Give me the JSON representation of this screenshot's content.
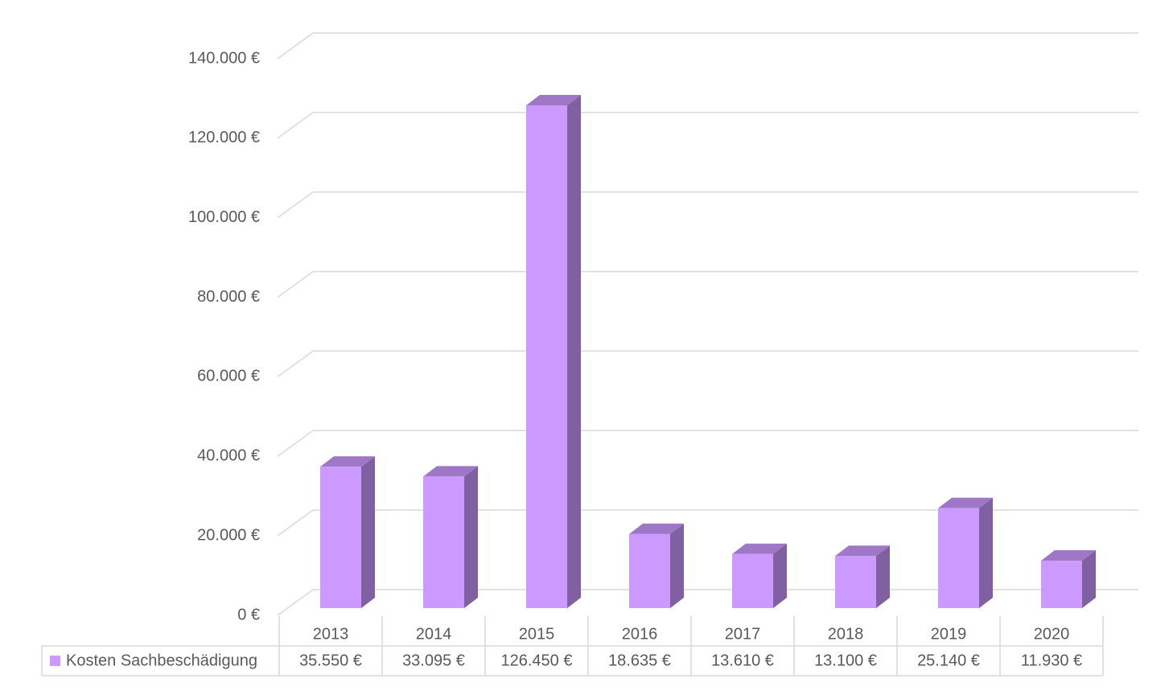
{
  "chart_data": {
    "type": "bar3d",
    "categories": [
      "2013",
      "2014",
      "2015",
      "2016",
      "2017",
      "2018",
      "2019",
      "2020"
    ],
    "series": [
      {
        "name": "Kosten Sachbeschädigung",
        "color": "#cc99ff",
        "values": [
          35550,
          33095,
          126450,
          18635,
          13610,
          13100,
          25140,
          11930
        ],
        "value_labels": [
          "35.550 €",
          "33.095 €",
          "126.450 €",
          "18.635 €",
          "13.610 €",
          "13.100 €",
          "25.140 €",
          "11.930 €"
        ]
      }
    ],
    "ylim": [
      0,
      140000
    ],
    "yticks": [
      {
        "value": 0,
        "label": "0 €"
      },
      {
        "value": 20000,
        "label": "20.000 €"
      },
      {
        "value": 40000,
        "label": "40.000 €"
      },
      {
        "value": 60000,
        "label": "60.000 €"
      },
      {
        "value": 80000,
        "label": "80.000 €"
      },
      {
        "value": 100000,
        "label": "100.000 €"
      },
      {
        "value": 120000,
        "label": "120.000 €"
      },
      {
        "value": 140000,
        "label": "140.000 €"
      }
    ],
    "grid": true
  }
}
